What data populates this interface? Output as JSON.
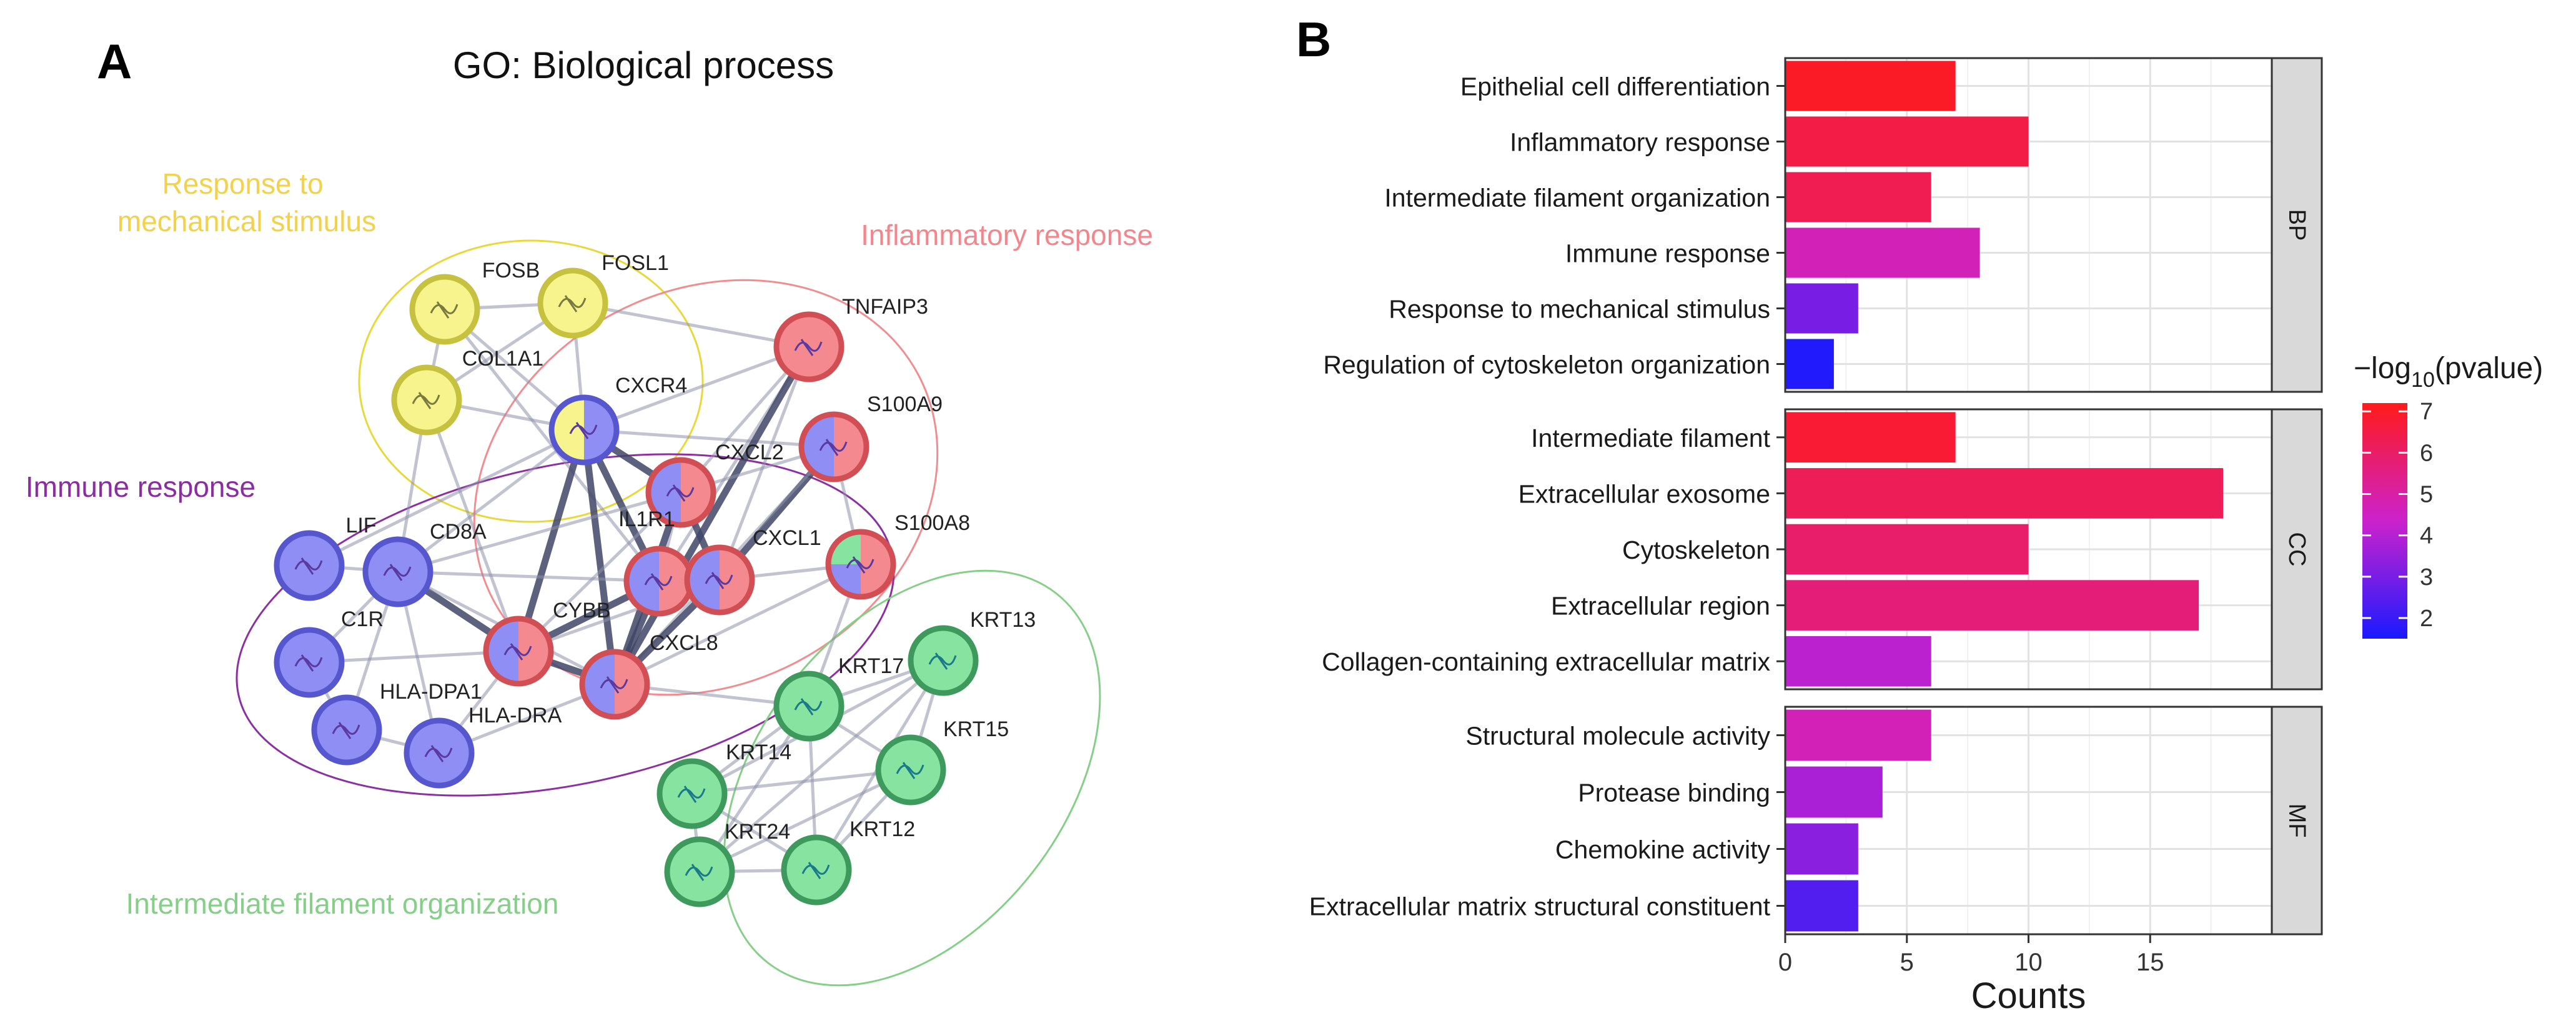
{
  "panels": {
    "a_letter": "A",
    "b_letter": "B"
  },
  "network": {
    "title": "GO: Biological process",
    "groups": [
      {
        "key": "mech",
        "label_lines": [
          "Response to",
          "mechanical stimulus"
        ],
        "color": "#e8d83a",
        "label_color": "#f2d24a"
      },
      {
        "key": "inflam",
        "label_lines": [
          "Inflammatory response"
        ],
        "color": "#f08d91",
        "label_color": "#f3868c"
      },
      {
        "key": "immune",
        "label_lines": [
          "Immune response"
        ],
        "color": "#8c2fa0",
        "label_color": "#8a2da0"
      },
      {
        "key": "filament",
        "label_lines": [
          "Intermediate filament organization"
        ],
        "color": "#86cf88",
        "label_color": "#86cf88"
      }
    ],
    "nodes": [
      {
        "name": "FOSB",
        "fill": [
          "yellow"
        ]
      },
      {
        "name": "FOSL1",
        "fill": [
          "yellow"
        ]
      },
      {
        "name": "COL1A1",
        "fill": [
          "yellow"
        ]
      },
      {
        "name": "CXCR4",
        "fill": [
          "yellow",
          "blue"
        ]
      },
      {
        "name": "TNFAIP3",
        "fill": [
          "red"
        ]
      },
      {
        "name": "S100A9",
        "fill": [
          "blue",
          "red"
        ]
      },
      {
        "name": "CXCL2",
        "fill": [
          "blue",
          "red"
        ]
      },
      {
        "name": "IL1R1",
        "fill": [
          "blue",
          "red"
        ]
      },
      {
        "name": "CXCL1",
        "fill": [
          "blue",
          "red"
        ]
      },
      {
        "name": "S100A8",
        "fill": [
          "green",
          "blue",
          "red"
        ]
      },
      {
        "name": "LIF",
        "fill": [
          "blue"
        ]
      },
      {
        "name": "CD8A",
        "fill": [
          "blue"
        ]
      },
      {
        "name": "C1R",
        "fill": [
          "blue"
        ]
      },
      {
        "name": "CYBB",
        "fill": [
          "blue",
          "red"
        ]
      },
      {
        "name": "CXCL8",
        "fill": [
          "blue",
          "red"
        ]
      },
      {
        "name": "HLA-DPA1",
        "fill": [
          "blue"
        ]
      },
      {
        "name": "HLA-DRA",
        "fill": [
          "blue"
        ]
      },
      {
        "name": "KRT13",
        "fill": [
          "green"
        ]
      },
      {
        "name": "KRT17",
        "fill": [
          "green"
        ]
      },
      {
        "name": "KRT15",
        "fill": [
          "green"
        ]
      },
      {
        "name": "KRT14",
        "fill": [
          "green"
        ]
      },
      {
        "name": "KRT12",
        "fill": [
          "green"
        ]
      },
      {
        "name": "KRT24",
        "fill": [
          "green"
        ]
      }
    ],
    "edges": [
      [
        "FOSB",
        "FOSL1"
      ],
      [
        "FOSB",
        "COL1A1"
      ],
      [
        "FOSB",
        "CXCR4"
      ],
      [
        "FOSB",
        "IL1R1"
      ],
      [
        "FOSL1",
        "COL1A1"
      ],
      [
        "FOSL1",
        "CXCR4"
      ],
      [
        "FOSL1",
        "TNFAIP3"
      ],
      [
        "COL1A1",
        "CXCR4"
      ],
      [
        "COL1A1",
        "CD8A"
      ],
      [
        "COL1A1",
        "CYBB"
      ],
      [
        "CXCR4",
        "CXCL2"
      ],
      [
        "CXCR4",
        "IL1R1"
      ],
      [
        "CXCR4",
        "CD8A"
      ],
      [
        "CXCR4",
        "CYBB"
      ],
      [
        "CXCR4",
        "CXCL8"
      ],
      [
        "CXCR4",
        "LIF"
      ],
      [
        "CXCR4",
        "S100A9"
      ],
      [
        "CXCR4",
        "TNFAIP3"
      ],
      [
        "TNFAIP3",
        "CXCL2"
      ],
      [
        "TNFAIP3",
        "IL1R1"
      ],
      [
        "TNFAIP3",
        "CXCL1"
      ],
      [
        "TNFAIP3",
        "CXCL8"
      ],
      [
        "S100A9",
        "CXCL2"
      ],
      [
        "S100A9",
        "S100A8"
      ],
      [
        "S100A9",
        "CXCL1"
      ],
      [
        "S100A9",
        "CXCL8"
      ],
      [
        "CXCL2",
        "IL1R1"
      ],
      [
        "CXCL2",
        "CXCL1"
      ],
      [
        "CXCL2",
        "CXCL8"
      ],
      [
        "CXCL2",
        "CYBB"
      ],
      [
        "CXCL2",
        "CD8A"
      ],
      [
        "IL1R1",
        "CXCL1"
      ],
      [
        "IL1R1",
        "CXCL8"
      ],
      [
        "IL1R1",
        "CYBB"
      ],
      [
        "IL1R1",
        "CD8A"
      ],
      [
        "CXCL1",
        "CXCL8"
      ],
      [
        "CXCL1",
        "S100A8"
      ],
      [
        "CXCL1",
        "CYBB"
      ],
      [
        "S100A8",
        "CXCL8"
      ],
      [
        "S100A8",
        "KRT17"
      ],
      [
        "LIF",
        "CD8A"
      ],
      [
        "CD8A",
        "CYBB"
      ],
      [
        "CD8A",
        "CXCL8"
      ],
      [
        "CD8A",
        "HLA-DPA1"
      ],
      [
        "CD8A",
        "HLA-DRA"
      ],
      [
        "CD8A",
        "C1R"
      ],
      [
        "C1R",
        "HLA-DPA1"
      ],
      [
        "C1R",
        "CYBB"
      ],
      [
        "CYBB",
        "CXCL8"
      ],
      [
        "CYBB",
        "HLA-DRA"
      ],
      [
        "HLA-DPA1",
        "HLA-DRA"
      ],
      [
        "HLA-DRA",
        "CXCL8"
      ],
      [
        "CXCL8",
        "KRT17"
      ],
      [
        "KRT13",
        "KRT17"
      ],
      [
        "KRT13",
        "KRT15"
      ],
      [
        "KRT13",
        "KRT14"
      ],
      [
        "KRT13",
        "KRT12"
      ],
      [
        "KRT13",
        "KRT24"
      ],
      [
        "KRT17",
        "KRT15"
      ],
      [
        "KRT17",
        "KRT14"
      ],
      [
        "KRT17",
        "KRT12"
      ],
      [
        "KRT17",
        "KRT24"
      ],
      [
        "KRT15",
        "KRT14"
      ],
      [
        "KRT15",
        "KRT12"
      ],
      [
        "KRT15",
        "KRT24"
      ],
      [
        "KRT14",
        "KRT12"
      ],
      [
        "KRT14",
        "KRT24"
      ],
      [
        "KRT12",
        "KRT24"
      ]
    ]
  },
  "chart_data": {
    "type": "bar",
    "orientation": "horizontal",
    "xlabel": "Counts",
    "xlim": [
      0,
      20
    ],
    "xticks": [
      0,
      5,
      10,
      15
    ],
    "grid": true,
    "colorbar": {
      "title_prefix": "−log",
      "title_sub": "10",
      "title_suffix": "(pvalue)",
      "min": 1.5,
      "max": 7.2,
      "ticks": [
        2,
        3,
        4,
        5,
        6,
        7
      ],
      "low_color": "#1a1aff",
      "high_color": "#ff1a1a"
    },
    "facets": [
      {
        "label": "BP",
        "categories": [
          {
            "name": "Epithelial cell differentiation",
            "count": 7,
            "neglog10p": 7.0
          },
          {
            "name": "Inflammatory response",
            "count": 10,
            "neglog10p": 6.5
          },
          {
            "name": "Intermediate filament organization",
            "count": 6,
            "neglog10p": 6.3
          },
          {
            "name": "Immune response",
            "count": 8,
            "neglog10p": 4.7
          },
          {
            "name": "Response to mechanical stimulus",
            "count": 3,
            "neglog10p": 3.0
          },
          {
            "name": "Regulation of cytoskeleton organization",
            "count": 2,
            "neglog10p": 1.6
          }
        ]
      },
      {
        "label": "CC",
        "categories": [
          {
            "name": "Intermediate filament",
            "count": 7,
            "neglog10p": 6.8
          },
          {
            "name": "Extracellular exosome",
            "count": 18,
            "neglog10p": 6.2
          },
          {
            "name": "Cytoskeleton",
            "count": 10,
            "neglog10p": 5.9
          },
          {
            "name": "Extracellular region",
            "count": 17,
            "neglog10p": 5.7
          },
          {
            "name": "Collagen-containing extracellular matrix",
            "count": 6,
            "neglog10p": 4.1
          }
        ]
      },
      {
        "label": "MF",
        "categories": [
          {
            "name": "Structural molecule activity",
            "count": 6,
            "neglog10p": 4.7
          },
          {
            "name": "Protease binding",
            "count": 4,
            "neglog10p": 3.8
          },
          {
            "name": "Chemokine activity",
            "count": 3,
            "neglog10p": 3.3
          },
          {
            "name": "Extracellular matrix structural constituent",
            "count": 3,
            "neglog10p": 2.4
          }
        ]
      }
    ]
  }
}
